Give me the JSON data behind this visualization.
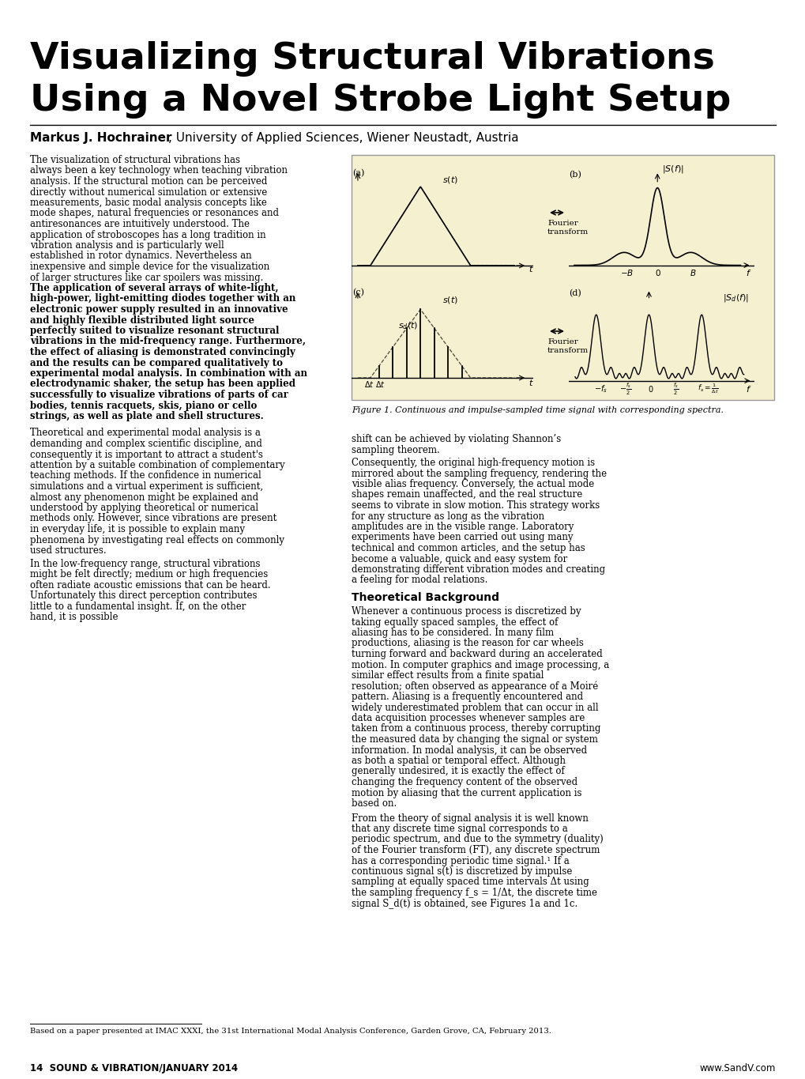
{
  "title_line1": "Visualizing Structural Vibrations",
  "title_line2": "Using a Novel Strobe Light Setup",
  "author_bold": "Markus J. Hochrainer",
  "author_rest": ", University of Applied Sciences, Wiener Neustadt, Austria",
  "figure_bg": "#f5f0d0",
  "figure_caption": "Figure 1. Continuous and impulse-sampled time signal with corresponding spectra.",
  "paragraph1": "    The visualization of structural vibrations has always been a key technology when teaching vibration analysis. If the structural motion can be perceived directly without numerical simulation or extensive measurements, basic modal analysis concepts like mode shapes, natural frequencies or resonances and antiresonances are intuitively understood. The application of stroboscopes has a long tradition in vibration analysis and is particularly well established in rotor dynamics. Nevertheless an inexpensive and simple device for the visualization of larger structures like car spoilers was missing.  The application of several arrays of white-light, high-power, light-emitting diodes together with an electronic power supply resulted in an innovative and highly flexible distributed light source perfectly suited to visualize resonant structural vibrations in the mid-frequency range. Furthermore, the effect of aliasing is demonstrated convincingly and the results can be compared qualitatively to experimental modal analysis. In combination with an electrodynamic shaker, the setup has been applied successfully to visualize vibrations of parts of car bodies, tennis racquets, skis, piano or cello strings, as well as plate and shell structures.",
  "paragraph2": "    Theoretical and experimental modal analysis is a demanding and complex scientific discipline, and consequently it is important to attract a student's attention by a suitable combination of complementary teaching methods. If the confidence in numerical simulations and a virtual experiment is sufficient, almost any phenomenon might be explained and understood by applying theoretical or numerical methods only. However, since vibrations are present in everyday life, it is possible to explain many phenomena by investigating real effects on commonly used structures.\n    In the low-frequency range, structural vibrations might be felt directly; medium or high frequencies often radiate acoustic emissions that can be heard. Unfortunately this direct perception contributes little to a fundamental insight. If, on the other hand, it is possible",
  "paragraph3_right": "shift can be achieved by violating Shannon’s sampling theorem.\n    Consequently, the original high-frequency motion is mirrored about the sampling frequency, rendering the visible alias frequency. Conversely, the actual mode shapes remain unaffected, and the real structure seems to vibrate in slow motion. This strategy works for any structure as long as the vibration amplitudes are in the visible range. Laboratory experiments have been carried out using many technical and common articles, and the setup has become a valuable, quick and easy system for demonstrating different vibration modes and creating a feeling for modal relations.",
  "section_heading": "Theoretical Background",
  "paragraph4_right": "    Whenever a continuous process is discretized by taking equally spaced samples, the effect of aliasing has to be considered. In many film productions, aliasing is the reason for car wheels turning forward and backward during an accelerated motion. In computer graphics and image processing, a similar effect results from a finite spatial resolution; often observed as appearance of a Moiré pattern. Aliasing is a frequently encountered and widely underestimated problem that can occur in all data acquisition processes whenever samples are taken from a continuous process, thereby corrupting the measured data by changing the signal or system information. In modal analysis, it can be observed as both a spatial or temporal effect. Although generally undesired, it is exactly the effect of changing the frequency content of the observed motion by aliasing that the current application is based on.",
  "paragraph5_right": "    From the theory of signal analysis it is well known that any discrete time signal corresponds to a periodic spectrum, and due to the symmetry (duality) of the Fourier transform (FT), any discrete spectrum has a corresponding periodic time signal.¹ If a continuous signal s(t) is discretized by impulse sampling at equally spaced time intervals Δt  using the sampling frequency f_s = 1/Δt, the discrete time signal S_d(t) is obtained, see Figures 1a and 1c.",
  "footnote": "Based on a paper presented at IMAC XXXI, the 31st International Modal Analysis Conference, Garden Grove, CA, February 2013.",
  "page_number": "14  SOUND & VIBRATION/JANUARY 2014",
  "website": "www.SandV.com"
}
